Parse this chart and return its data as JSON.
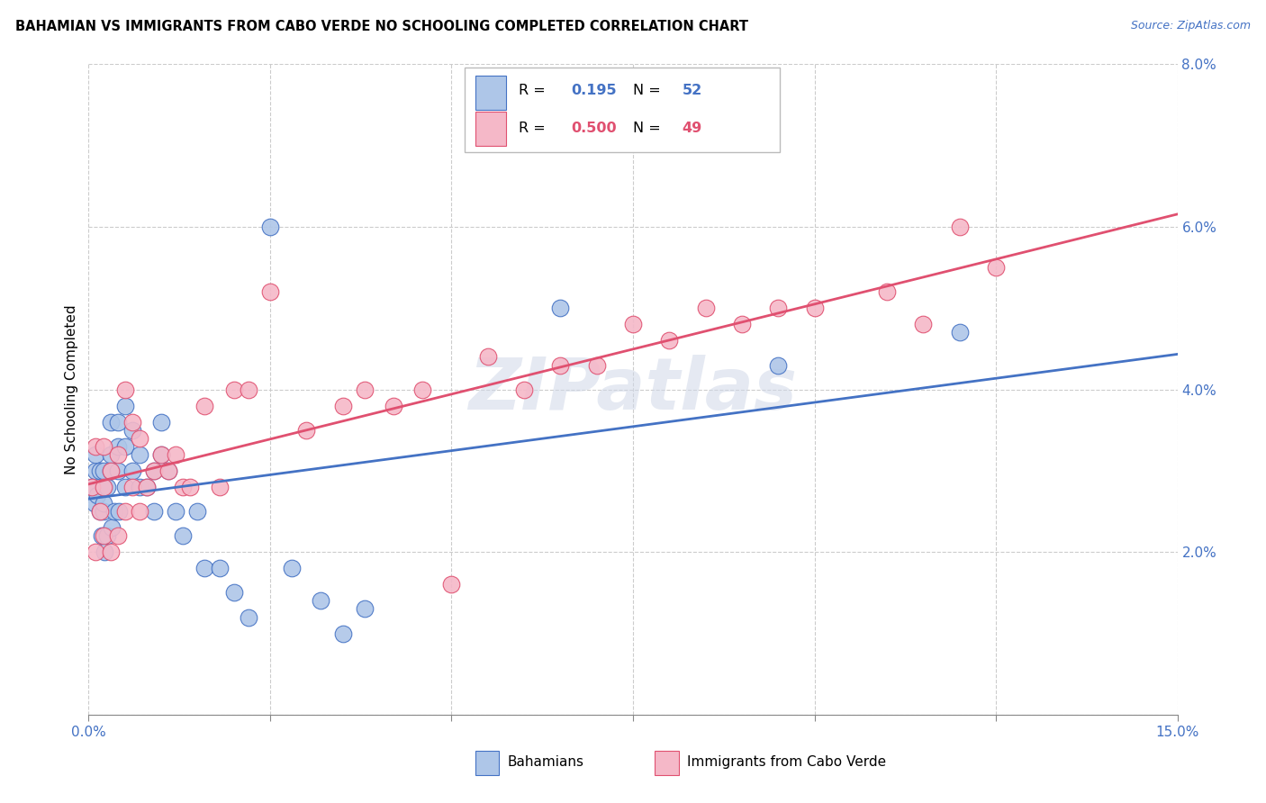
{
  "title": "BAHAMIAN VS IMMIGRANTS FROM CABO VERDE NO SCHOOLING COMPLETED CORRELATION CHART",
  "source": "Source: ZipAtlas.com",
  "ylabel": "No Schooling Completed",
  "xlim": [
    0.0,
    0.15
  ],
  "ylim": [
    0.0,
    0.08
  ],
  "xticks": [
    0.0,
    0.025,
    0.05,
    0.075,
    0.1,
    0.125,
    0.15
  ],
  "yticks": [
    0.0,
    0.02,
    0.04,
    0.06,
    0.08
  ],
  "bahamians_R": 0.195,
  "bahamians_N": 52,
  "caboverde_R": 0.5,
  "caboverde_N": 49,
  "blue_color": "#aec6e8",
  "pink_color": "#f5b8c8",
  "blue_line_color": "#4472c4",
  "pink_line_color": "#e05070",
  "watermark": "ZIPatlas",
  "legend_label_blue": "Bahamians",
  "legend_label_pink": "Immigrants from Cabo Verde",
  "bahamians_x": [
    0.0005,
    0.0008,
    0.001,
    0.001,
    0.0012,
    0.0015,
    0.0015,
    0.0018,
    0.002,
    0.002,
    0.002,
    0.002,
    0.0022,
    0.0025,
    0.0025,
    0.003,
    0.003,
    0.003,
    0.0032,
    0.0035,
    0.004,
    0.004,
    0.004,
    0.0042,
    0.005,
    0.005,
    0.005,
    0.006,
    0.006,
    0.007,
    0.007,
    0.008,
    0.009,
    0.009,
    0.01,
    0.01,
    0.011,
    0.012,
    0.013,
    0.015,
    0.016,
    0.018,
    0.02,
    0.022,
    0.025,
    0.028,
    0.032,
    0.035,
    0.038,
    0.065,
    0.095,
    0.12
  ],
  "bahamians_y": [
    0.028,
    0.026,
    0.03,
    0.032,
    0.027,
    0.025,
    0.03,
    0.022,
    0.025,
    0.026,
    0.028,
    0.03,
    0.02,
    0.022,
    0.028,
    0.03,
    0.032,
    0.036,
    0.023,
    0.025,
    0.03,
    0.033,
    0.036,
    0.025,
    0.028,
    0.033,
    0.038,
    0.03,
    0.035,
    0.028,
    0.032,
    0.028,
    0.025,
    0.03,
    0.032,
    0.036,
    0.03,
    0.025,
    0.022,
    0.025,
    0.018,
    0.018,
    0.015,
    0.012,
    0.06,
    0.018,
    0.014,
    0.01,
    0.013,
    0.05,
    0.043,
    0.047
  ],
  "caboverde_x": [
    0.0005,
    0.001,
    0.001,
    0.0015,
    0.002,
    0.002,
    0.002,
    0.003,
    0.003,
    0.004,
    0.004,
    0.005,
    0.005,
    0.006,
    0.006,
    0.007,
    0.007,
    0.008,
    0.009,
    0.01,
    0.011,
    0.012,
    0.013,
    0.014,
    0.016,
    0.018,
    0.02,
    0.022,
    0.025,
    0.03,
    0.035,
    0.038,
    0.042,
    0.046,
    0.05,
    0.055,
    0.06,
    0.065,
    0.07,
    0.075,
    0.08,
    0.085,
    0.09,
    0.095,
    0.1,
    0.11,
    0.115,
    0.12,
    0.125
  ],
  "caboverde_y": [
    0.028,
    0.02,
    0.033,
    0.025,
    0.022,
    0.028,
    0.033,
    0.02,
    0.03,
    0.022,
    0.032,
    0.025,
    0.04,
    0.028,
    0.036,
    0.025,
    0.034,
    0.028,
    0.03,
    0.032,
    0.03,
    0.032,
    0.028,
    0.028,
    0.038,
    0.028,
    0.04,
    0.04,
    0.052,
    0.035,
    0.038,
    0.04,
    0.038,
    0.04,
    0.016,
    0.044,
    0.04,
    0.043,
    0.043,
    0.048,
    0.046,
    0.05,
    0.048,
    0.05,
    0.05,
    0.052,
    0.048,
    0.06,
    0.055
  ]
}
